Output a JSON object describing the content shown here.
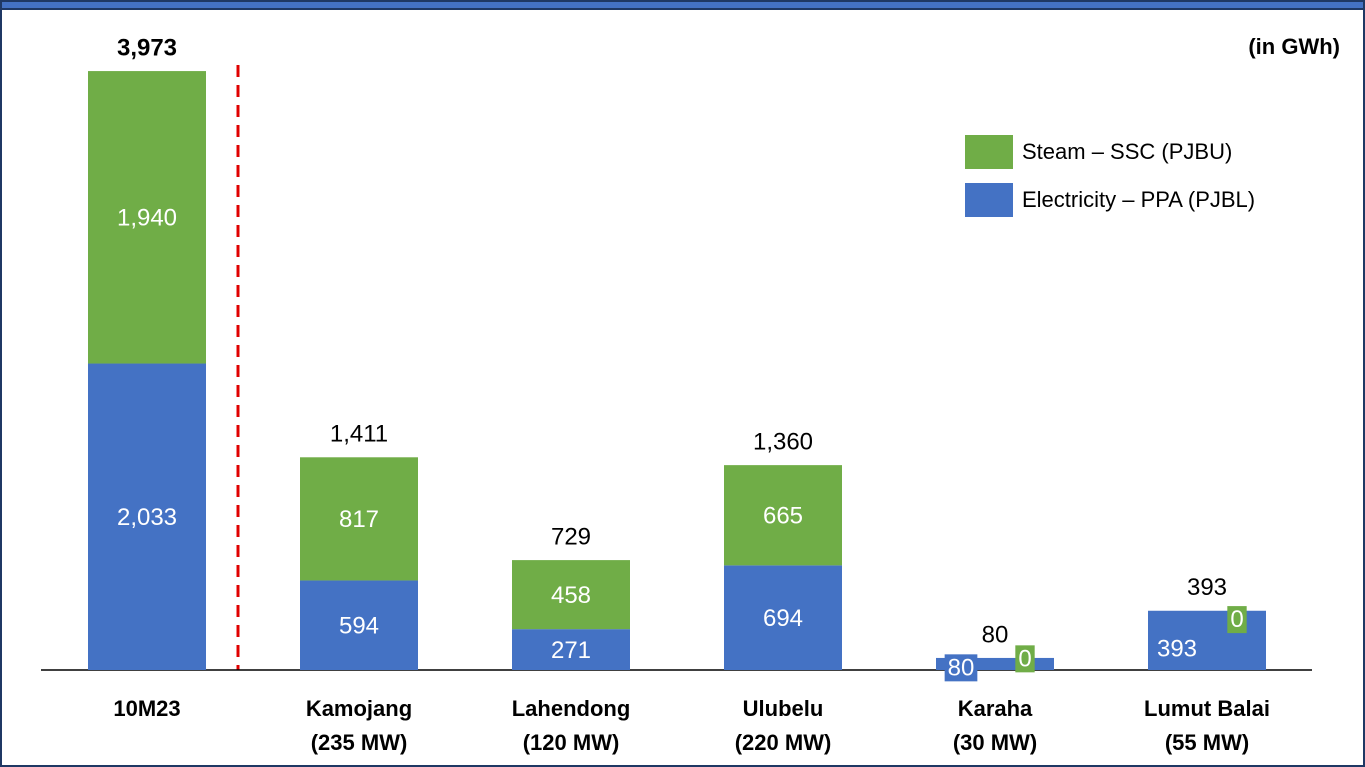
{
  "chart_data": {
    "type": "stacked_bar",
    "unit_label": "(in GWh)",
    "categories": [
      "10M23",
      "Kamojang\n(235 MW)",
      "Lahendong\n(120 MW)",
      "Ulubelu\n(220 MW)",
      "Karaha\n(30 MW)",
      "Lumut Balai\n(55 MW)"
    ],
    "series": [
      {
        "name": "Electricity – PPA (PJBL)",
        "color": "#4472c4",
        "values": [
          2033,
          594,
          271,
          694,
          80,
          393
        ],
        "value_labels": [
          "2,033",
          "594",
          "271",
          "694",
          "80",
          "393"
        ]
      },
      {
        "name": "Steam – SSC (PJBU)",
        "color": "#70ad47",
        "values": [
          1940,
          817,
          458,
          665,
          0,
          0
        ],
        "value_labels": [
          "1,940",
          "817",
          "458",
          "665",
          "0",
          "0"
        ]
      }
    ],
    "totals": [
      3973,
      1411,
      729,
      1360,
      80,
      393
    ],
    "total_labels": [
      "3,973",
      "1,411",
      "729",
      "1,360",
      "80",
      "393"
    ],
    "ylim": [
      0,
      4000
    ],
    "legend": "upper right"
  }
}
